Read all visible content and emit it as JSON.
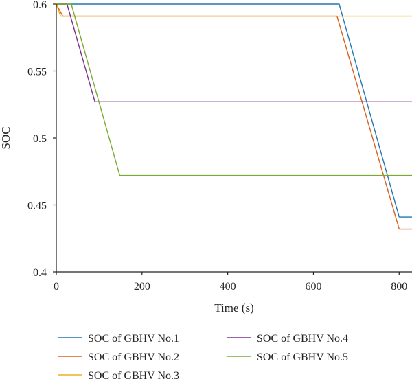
{
  "chart_data": {
    "type": "line",
    "xlabel": "Time (s)",
    "ylabel": "SOC",
    "xlim": [
      0,
      830
    ],
    "ylim": [
      0.4,
      0.6
    ],
    "xticks": [
      0,
      200,
      400,
      600,
      800
    ],
    "xtick_labels": [
      "0",
      "200",
      "400",
      "600",
      "800"
    ],
    "yticks": [
      0.4,
      0.45,
      0.5,
      0.55,
      0.6
    ],
    "ytick_labels": [
      "0.4",
      "0.45",
      "0.5",
      "0.55",
      "0.6"
    ],
    "grid": false,
    "legend_position": "bottom",
    "series": [
      {
        "name": "SOC of GBHV No.1",
        "color": "#1f77b4",
        "x": [
          0,
          660,
          800,
          830
        ],
        "y": [
          0.6,
          0.6,
          0.441,
          0.441
        ]
      },
      {
        "name": "SOC of GBHV No.2",
        "color": "#d95f1e",
        "x": [
          0,
          15,
          655,
          800,
          830
        ],
        "y": [
          0.6,
          0.591,
          0.591,
          0.432,
          0.432
        ]
      },
      {
        "name": "SOC of GBHV No.3",
        "color": "#edb120",
        "x": [
          0,
          10,
          830
        ],
        "y": [
          0.6,
          0.591,
          0.591
        ]
      },
      {
        "name": "SOC of GBHV No.4",
        "color": "#7e2f8e",
        "x": [
          0,
          25,
          90,
          830
        ],
        "y": [
          0.6,
          0.6,
          0.527,
          0.527
        ]
      },
      {
        "name": "SOC of GBHV No.5",
        "color": "#77ac30",
        "x": [
          0,
          35,
          148,
          830
        ],
        "y": [
          0.6,
          0.6,
          0.472,
          0.472
        ]
      }
    ]
  }
}
